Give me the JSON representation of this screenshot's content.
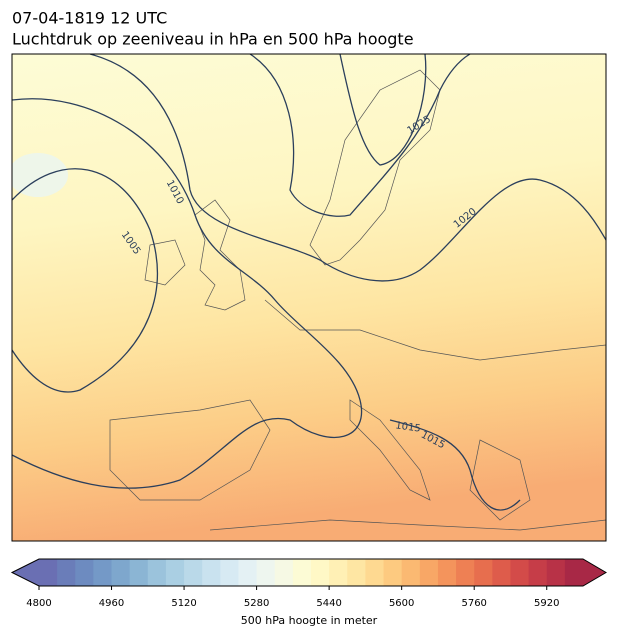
{
  "header": {
    "title": "07-04-1819 12 UTC",
    "subtitle": "Luchtdruk op zeeniveau in hPa en 500 hPa hoogte"
  },
  "map": {
    "contour_labels": [
      1025,
      1020,
      1010,
      1005,
      1015,
      1015
    ]
  },
  "colorbar": {
    "label": "500 hPa hoogte in meter",
    "lim": [
      4800,
      6000
    ],
    "ticks": [
      4800,
      4960,
      5120,
      5280,
      5440,
      5600,
      5760,
      5920
    ],
    "colors": [
      "#6a6fb3",
      "#6a7db9",
      "#6d8bc0",
      "#7499c7",
      "#7ea7cd",
      "#8bb5d4",
      "#9bc3dc",
      "#aacfe3",
      "#bad9e9",
      "#c9e2ef",
      "#d7eaf3",
      "#e4f1f4",
      "#eef6ef",
      "#f6f9e4",
      "#fcfbd5",
      "#fff8c6",
      "#fff0b5",
      "#fee6a3",
      "#fed991",
      "#fdca80",
      "#fbb972",
      "#f8a766",
      "#f4945c",
      "#ee8054",
      "#e76e4e",
      "#de5c4b",
      "#d34b49",
      "#c63d48",
      "#b83247",
      "#a82846"
    ]
  }
}
